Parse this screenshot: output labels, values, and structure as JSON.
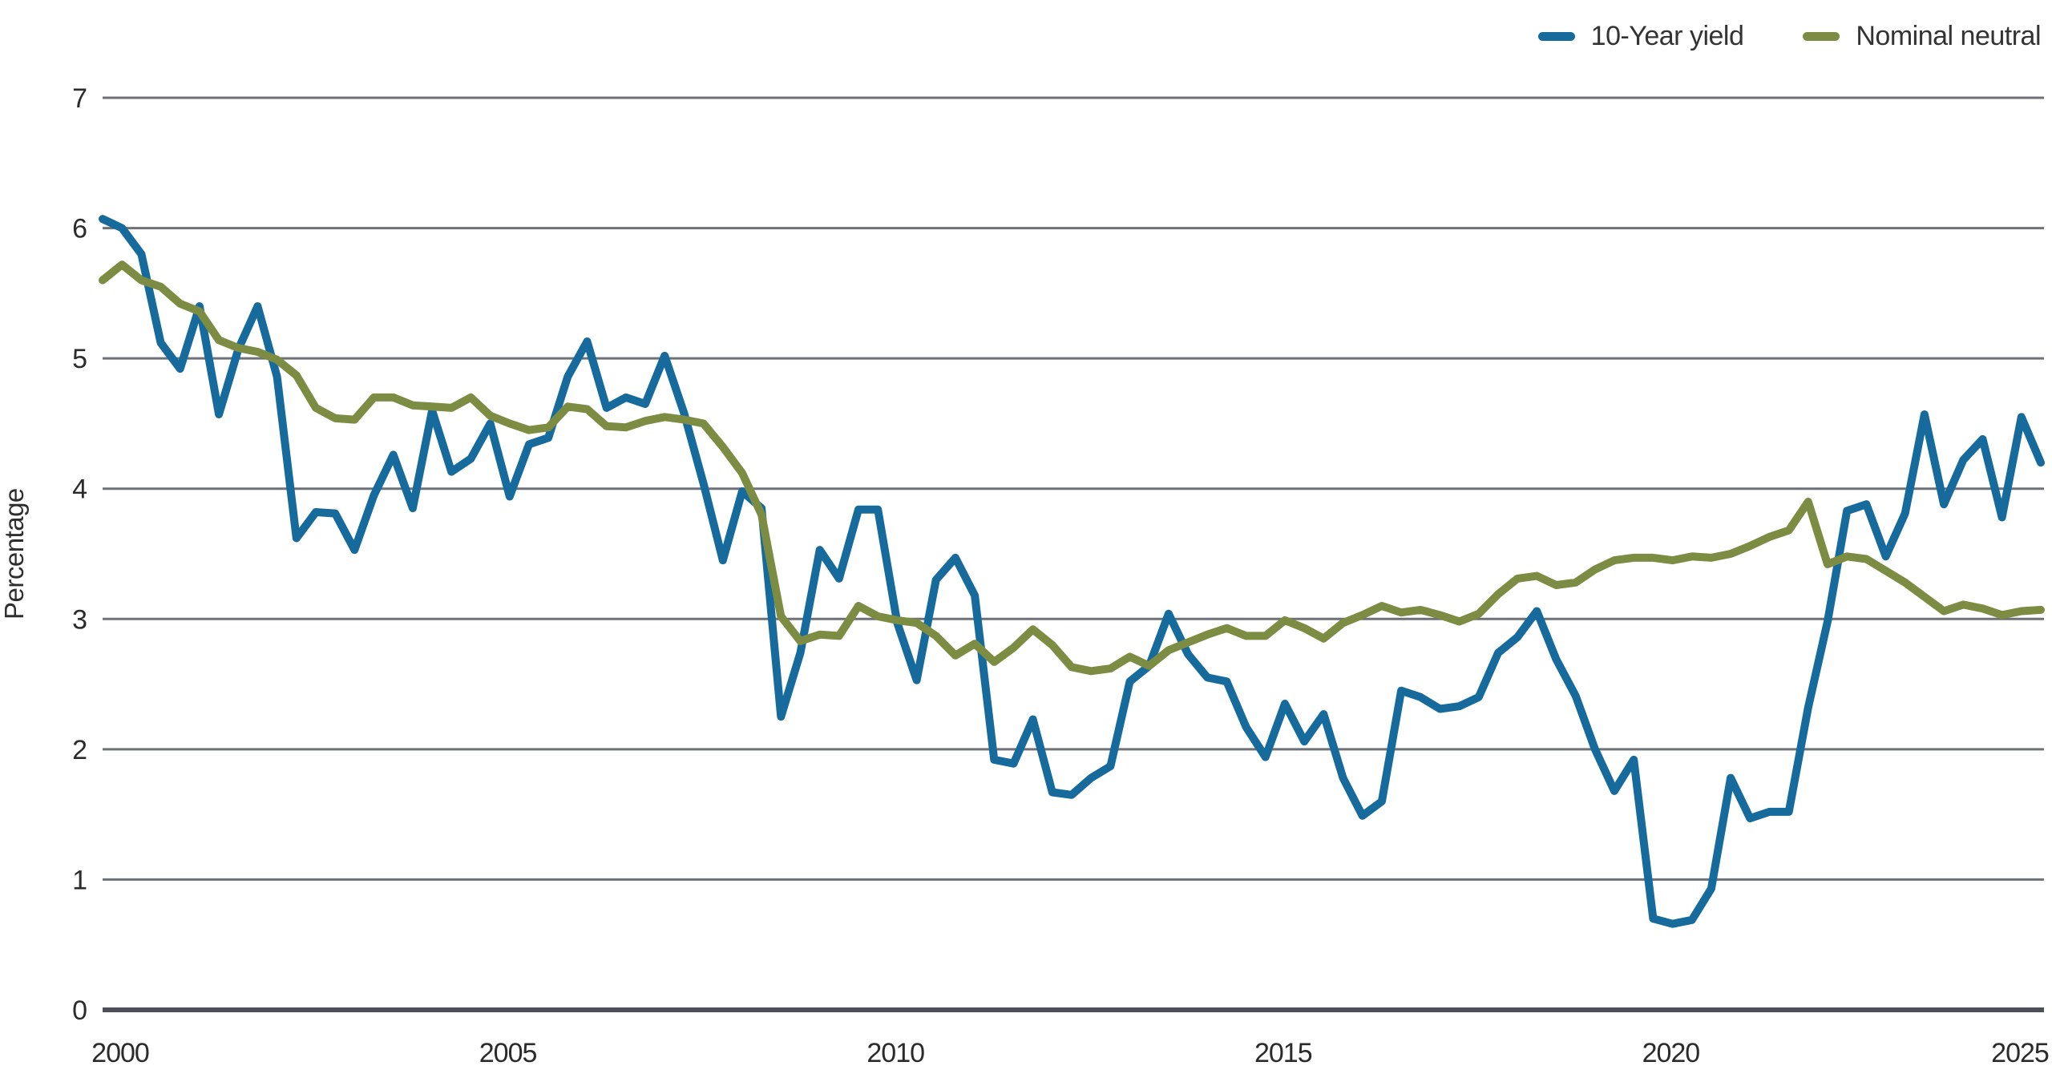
{
  "legend": {
    "items": [
      {
        "label": "10-Year yield",
        "color": "#176a9c"
      },
      {
        "label": "Nominal neutral",
        "color": "#7c8c42"
      }
    ]
  },
  "y_axis_title": "Percentage",
  "chart_data": {
    "type": "line",
    "title": "",
    "xlabel": "",
    "ylabel": "Percentage",
    "ylim": [
      0,
      7
    ],
    "y_ticks": [
      0,
      1,
      2,
      3,
      4,
      5,
      6,
      7
    ],
    "x_ticks": [
      2000,
      2005,
      2010,
      2015,
      2020,
      2025
    ],
    "x_start_year": 2000,
    "x_end_year": 2025,
    "frequency": "quarterly",
    "grid": "horizontal",
    "legend_position": "top-right",
    "grid_color": "#6e7278",
    "axis_color": "#4c5058",
    "series": [
      {
        "name": "10-Year yield",
        "color": "#176a9c",
        "values": [
          6.07,
          6.0,
          5.8,
          5.12,
          4.92,
          5.4,
          4.57,
          5.07,
          5.4,
          4.86,
          3.62,
          3.82,
          3.81,
          3.53,
          3.95,
          4.26,
          3.85,
          4.6,
          4.13,
          4.23,
          4.5,
          3.94,
          4.34,
          4.39,
          4.86,
          5.13,
          4.62,
          4.7,
          4.65,
          5.02,
          4.58,
          4.04,
          3.45,
          3.98,
          3.85,
          2.25,
          2.74,
          3.53,
          3.31,
          3.84,
          3.84,
          2.97,
          2.53,
          3.3,
          3.47,
          3.18,
          1.92,
          1.89,
          2.23,
          1.67,
          1.65,
          1.78,
          1.87,
          2.52,
          2.64,
          3.04,
          2.73,
          2.55,
          2.52,
          2.17,
          1.94,
          2.35,
          2.06,
          2.27,
          1.78,
          1.49,
          1.6,
          2.45,
          2.4,
          2.31,
          2.33,
          2.4,
          2.74,
          2.86,
          3.06,
          2.69,
          2.41,
          2.0,
          1.68,
          1.92,
          0.7,
          0.66,
          0.69,
          0.93,
          1.78,
          1.47,
          1.52,
          1.52,
          2.32,
          2.98,
          3.83,
          3.88,
          3.48,
          3.81,
          4.57,
          3.88,
          4.22,
          4.38,
          3.78,
          4.55,
          4.2
        ]
      },
      {
        "name": "Nominal neutral",
        "color": "#7c8c42",
        "values": [
          5.6,
          5.72,
          5.6,
          5.55,
          5.42,
          5.36,
          5.14,
          5.08,
          5.05,
          4.99,
          4.87,
          4.62,
          4.54,
          4.53,
          4.7,
          4.7,
          4.64,
          4.63,
          4.62,
          4.7,
          4.56,
          4.5,
          4.45,
          4.47,
          4.63,
          4.61,
          4.48,
          4.47,
          4.52,
          4.55,
          4.53,
          4.5,
          4.32,
          4.12,
          3.8,
          3.02,
          2.83,
          2.88,
          2.87,
          3.1,
          3.02,
          2.99,
          2.97,
          2.87,
          2.72,
          2.81,
          2.67,
          2.78,
          2.92,
          2.8,
          2.63,
          2.6,
          2.62,
          2.71,
          2.64,
          2.76,
          2.82,
          2.88,
          2.93,
          2.87,
          2.87,
          2.99,
          2.93,
          2.85,
          2.97,
          3.03,
          3.1,
          3.05,
          3.07,
          3.03,
          2.98,
          3.04,
          3.19,
          3.31,
          3.33,
          3.26,
          3.28,
          3.38,
          3.45,
          3.47,
          3.47,
          3.45,
          3.48,
          3.47,
          3.5,
          3.56,
          3.63,
          3.68,
          3.9,
          3.42,
          3.48,
          3.46,
          3.37,
          3.28,
          3.17,
          3.06,
          3.11,
          3.08,
          3.03,
          3.06,
          3.07
        ]
      }
    ]
  }
}
